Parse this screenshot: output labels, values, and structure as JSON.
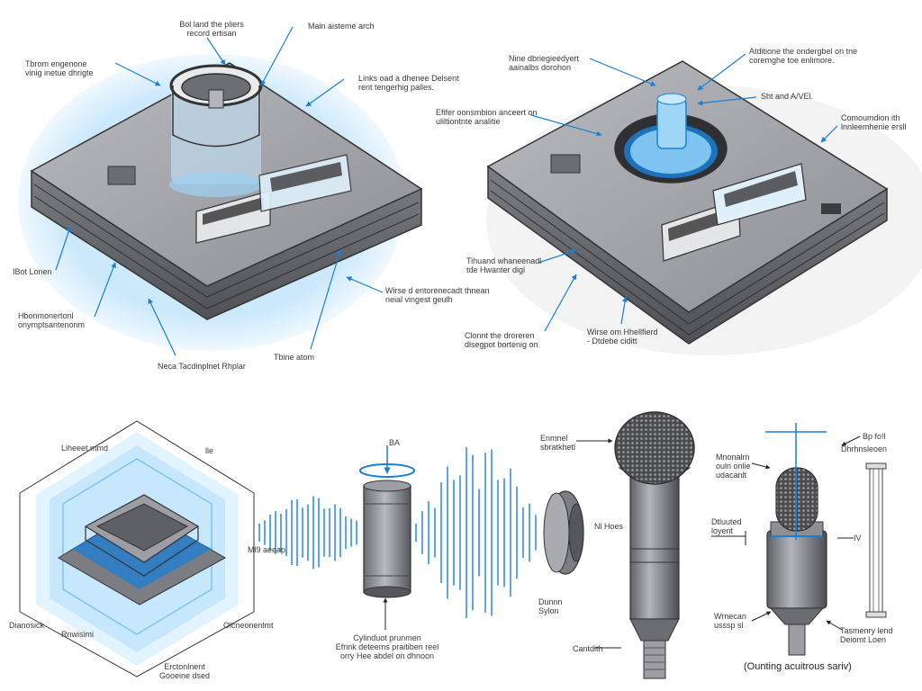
{
  "colors": {
    "accent": "#1a7fd4",
    "glow": "#bfe3fb",
    "device_body": "#8e9095",
    "device_top": "#a9abb0",
    "outline": "#3b3b3e"
  },
  "labels": {
    "tl_top_a": "Bol land the pliers",
    "tl_top_b": "record ertisan",
    "tl_main": "Main aisteme arch",
    "tl_left_a": "Tbrom engenone",
    "tl_left_b": "vinig inetue dhrigte",
    "tl_right_a": "Links oad a dhenee Delsent",
    "tl_right_b": "rent tengerhig palles.",
    "tl_bl": "IBot Lonen",
    "tl_bl2_a": "Hbonmonertonl",
    "tl_bl2_b": "onymptsantenonm",
    "tl_bottom_mid": "Neca Tacdinplnet Rhplar",
    "tl_bottom_r": "Tbine atom",
    "tl_right_low_a": "Wirse d entorenecadt thnean",
    "tl_right_low_b": "neial vingest geulh",
    "tr_top_a": "Nine dbriegieedyert",
    "tr_top_b": "aainalbs dorohon",
    "tr_top_r_a": "Atditione the ondergbel on tne",
    "tr_top_r_b": "coremghe toe enlimore.",
    "tr_mid_a": "Efifer oonsmbion anceert on",
    "tr_mid_b": "uliltiontnte analitie",
    "tr_hand": "Sht and A/VEl.",
    "tr_right_a": "Comoumdion ith",
    "tr_right_b": "lnnleemhenie ersll",
    "tr_left_a": "Tihuand whaneenadl",
    "tr_left_b": "tde Hwanter digl",
    "tr_bl_a": "Clonnt the droreren",
    "tr_bl_b": "dlsegpot bortenig on",
    "tr_bm_a": "Wirse om Hhellfierd",
    "tr_bm_b": "- Dtdebe ciditt",
    "bl_top": "Liheeet mmd",
    "bl_ha": "lle",
    "bl_dianosick": "Dianosick",
    "bl_rnwisimi": "Rnwisimi",
    "bl_ofcon": "Olcneonenlmt",
    "bl_mb": "Ml9 aeeap",
    "bl_bottom_a": "Erctonlnent",
    "bl_bottom_b": "Gooeine dsed",
    "bm_ba": "BA",
    "bm_cyl_a": "Cylinduot prunmen",
    "bm_cyl_b": "Efrink deteems praitiben reel",
    "bm_cyl_c": "orry Hee abdel on dhnoon",
    "bm_nieg": "Nl Hoes",
    "bm_dom_a": "Dunnn",
    "bm_dom_b": "Sylon",
    "br_top_a": "Enmnel",
    "br_top_b": "sbratkhetl",
    "br_side_a": "Dtluuted",
    "br_side_b": "loyent",
    "br_cant": "Cantdith",
    "br_med_a": "Mnonalrn",
    "br_med_b": "ouln onlie",
    "br_med_c": "udacanlt",
    "br_bp": "Bp fo!l",
    "br_dhr": "Dhrhnsleoen",
    "br_wav_a": "Wrnecan",
    "br_wav_b": "usssp sl",
    "br_tel_a": "Tasmenry lend",
    "br_tel_b": "Deiomt Loen",
    "br_tt": "IV",
    "caption": "(Ounting acuitrous sariv)"
  }
}
